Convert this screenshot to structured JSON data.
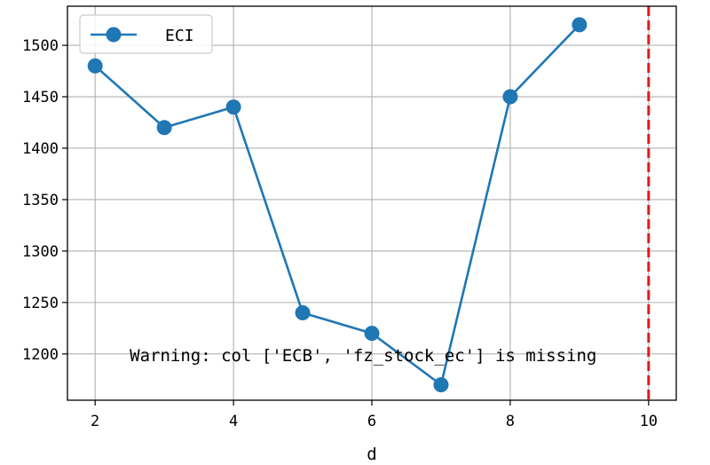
{
  "chart_data": {
    "type": "line",
    "title": "",
    "xlabel": "d",
    "ylabel": "",
    "xlim": [
      1.6,
      10.4
    ],
    "ylim": [
      1155,
      1538
    ],
    "x_ticks": [
      2,
      4,
      6,
      8,
      10
    ],
    "x_tick_labels": [
      "2",
      "4",
      "6",
      "8",
      "10"
    ],
    "y_ticks": [
      1200,
      1250,
      1300,
      1350,
      1400,
      1450,
      1500
    ],
    "y_tick_labels": [
      "1200",
      "1250",
      "1300",
      "1350",
      "1400",
      "1450",
      "1500"
    ],
    "grid": true,
    "legend_position": "top-left",
    "series": [
      {
        "name": "ECI",
        "color": "#1f77b4",
        "marker": "circle",
        "x": [
          2,
          3,
          4,
          5,
          6,
          7,
          8,
          9
        ],
        "y": [
          1480,
          1420,
          1440,
          1240,
          1220,
          1170,
          1450,
          1520
        ]
      }
    ],
    "vertical_line": {
      "x": 10,
      "color": "#e3191c",
      "style": "dashed"
    },
    "annotation": {
      "text": "Warning: col ['ECB', 'fz_stock_ec'] is missing",
      "x": 2.5,
      "y": 1200
    }
  }
}
